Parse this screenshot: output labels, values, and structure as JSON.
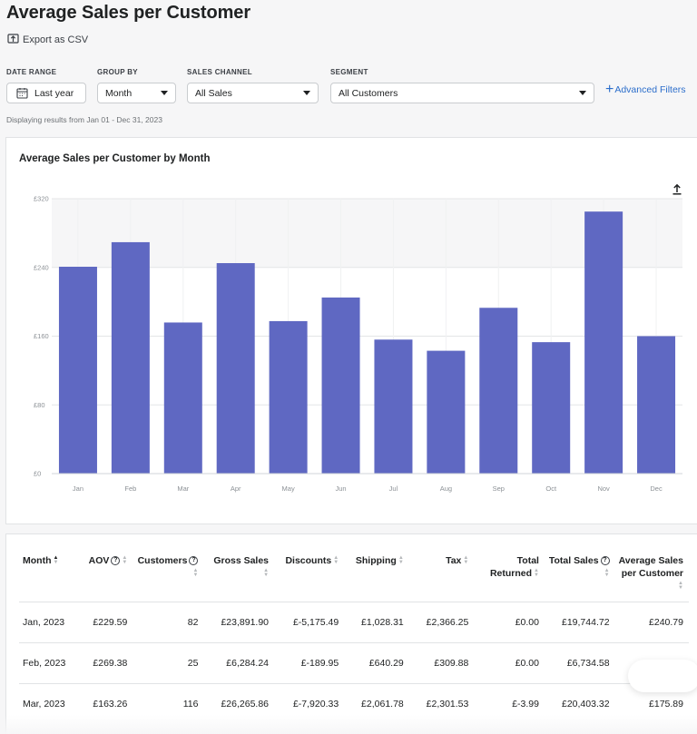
{
  "header": {
    "title": "Average Sales per Customer",
    "export_label": "Export as CSV"
  },
  "filters": {
    "date_range": {
      "label": "DATE RANGE",
      "value": "Last year"
    },
    "group_by": {
      "label": "GROUP BY",
      "value": "Month"
    },
    "sales_channel": {
      "label": "SALES CHANNEL",
      "value": "All Sales"
    },
    "segment": {
      "label": "SEGMENT",
      "value": "All Customers"
    },
    "advanced_label": "Advanced Filters",
    "range_note": "Displaying results from Jan 01 - Dec 31, 2023"
  },
  "chart_data": {
    "type": "bar",
    "title": "Average Sales per Customer by Month",
    "categories": [
      "Jan",
      "Feb",
      "Mar",
      "Apr",
      "May",
      "Jun",
      "Jul",
      "Aug",
      "Sep",
      "Oct",
      "Nov",
      "Dec"
    ],
    "values": [
      240.79,
      269.38,
      175.89,
      245,
      177.5,
      205,
      156,
      143,
      193,
      153,
      305,
      160
    ],
    "yticks": [
      "£0",
      "£80",
      "£160",
      "£240",
      "£320"
    ],
    "ylim": [
      0,
      320
    ],
    "bar_color": "#5f68c2",
    "grid": true
  },
  "table": {
    "columns": [
      {
        "label": "Month",
        "align": "left",
        "sort": true
      },
      {
        "label": "AOV",
        "help": true,
        "sort": true
      },
      {
        "label": "Customers",
        "help": true,
        "sort": true
      },
      {
        "label": "Gross Sales",
        "sort": true
      },
      {
        "label": "Discounts",
        "sort": true
      },
      {
        "label": "Shipping",
        "sort": true
      },
      {
        "label": "Tax",
        "sort": true
      },
      {
        "label": "Total Returned",
        "sort": true
      },
      {
        "label": "Total Sales",
        "help": true,
        "sort": true
      },
      {
        "label": "Average Sales per Customer",
        "sort": true
      }
    ],
    "rows": [
      [
        "Jan, 2023",
        "£229.59",
        "82",
        "£23,891.90",
        "£-5,175.49",
        "£1,028.31",
        "£2,366.25",
        "£0.00",
        "£19,744.72",
        "£240.79"
      ],
      [
        "Feb, 2023",
        "£269.38",
        "25",
        "£6,284.24",
        "£-189.95",
        "£640.29",
        "£309.88",
        "£0.00",
        "£6,734.58",
        "£269.38"
      ],
      [
        "Mar, 2023",
        "£163.26",
        "116",
        "£26,265.86",
        "£-7,920.33",
        "£2,061.78",
        "£2,301.53",
        "£-3.99",
        "£20,403.32",
        "£175.89"
      ]
    ]
  }
}
